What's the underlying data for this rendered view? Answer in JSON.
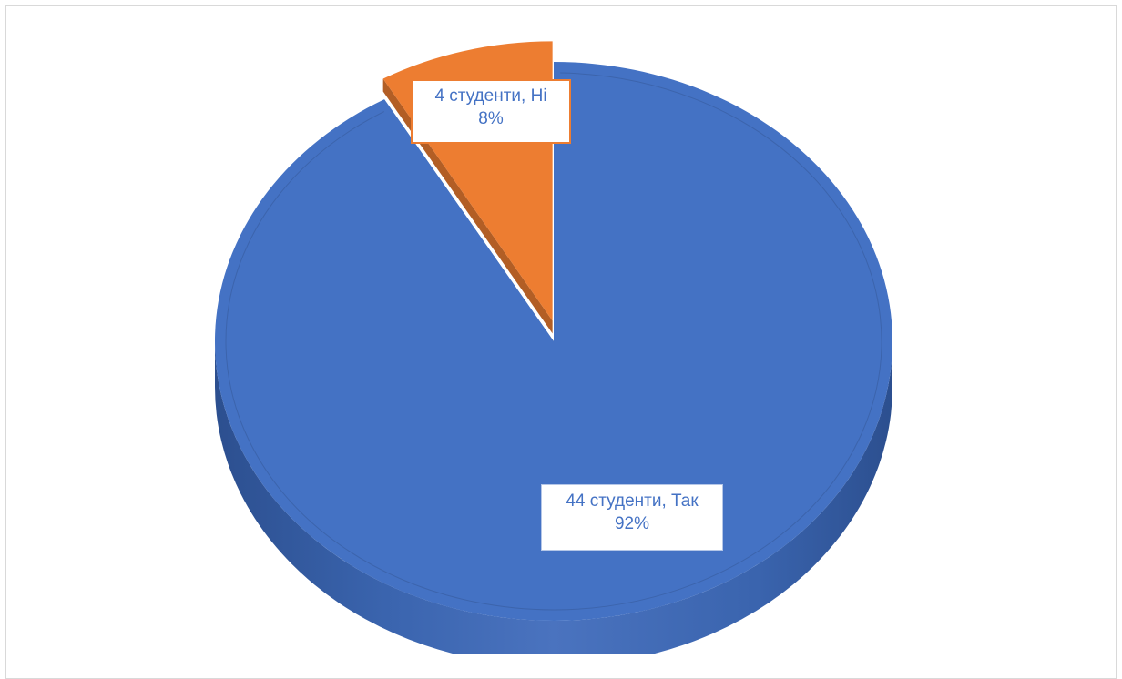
{
  "chart_data": {
    "type": "pie",
    "style": "3d",
    "title": "",
    "slices": [
      {
        "category": "Так",
        "count_label": "44 студенти, Так",
        "value": 44,
        "percent_label": "92%",
        "color": "#4472c4"
      },
      {
        "category": "Ні",
        "count_label": "4 студенти, Ні",
        "value": 4,
        "percent_label": "8%",
        "color": "#ed7d31"
      }
    ],
    "legend": "none"
  }
}
